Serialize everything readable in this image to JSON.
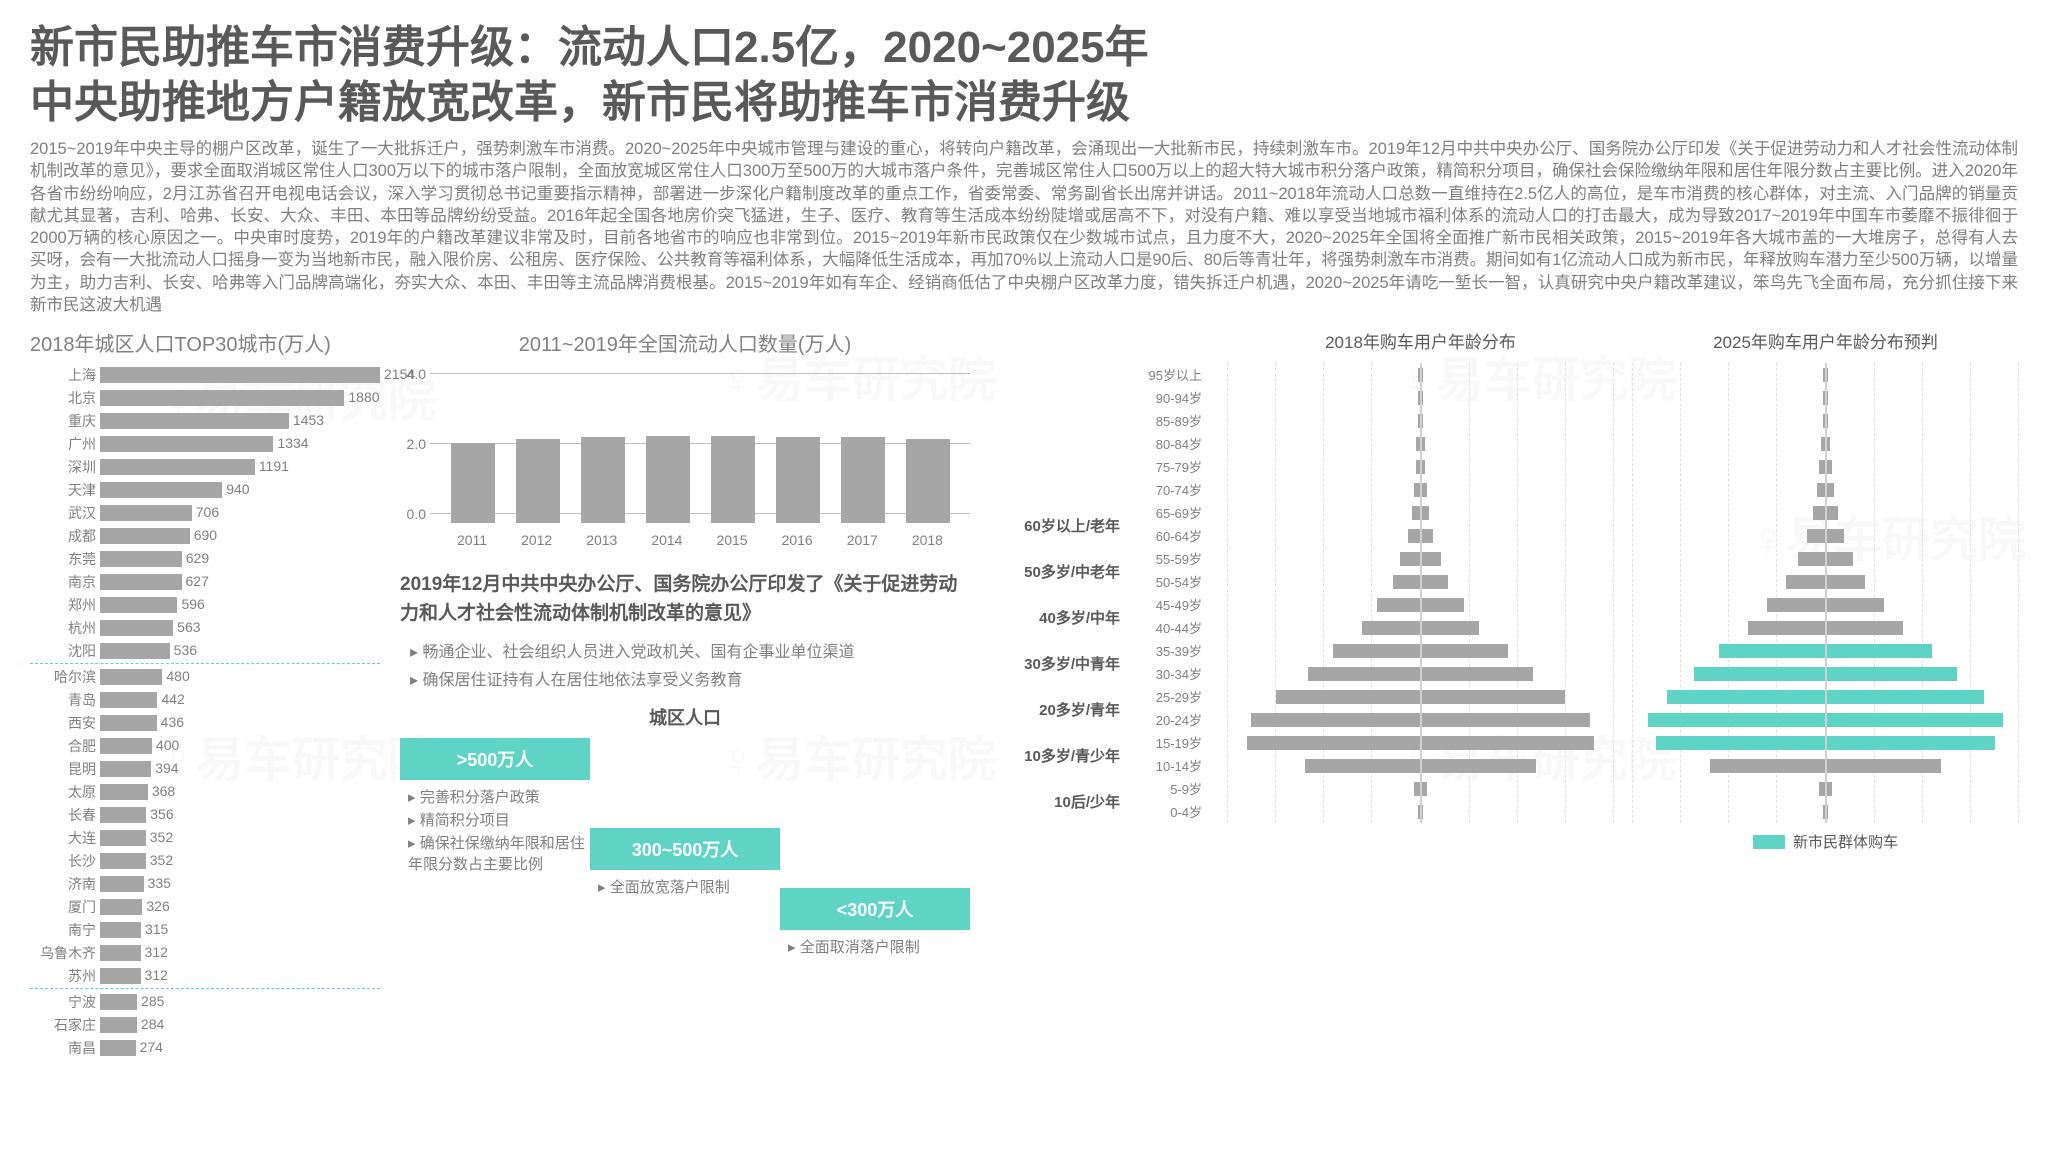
{
  "title_line1": "新市民助推车市消费升级：流动人口2.5亿，2020~2025年",
  "title_line2": "中央助推地方户籍放宽改革，新市民将助推车市消费升级",
  "body": "2015~2019年中央主导的棚户区改革，诞生了一大批拆迁户，强势刺激车市消费。2020~2025年中央城市管理与建设的重心，将转向户籍改革，会涌现出一大批新市民，持续刺激车市。2019年12月中共中央办公厅、国务院办公厅印发《关于促进劳动力和人才社会性流动体制机制改革的意见》，要求全面取消城区常住人口300万以下的城市落户限制，全面放宽城区常住人口300万至500万的大城市落户条件，完善城区常住人口500万以上的超大特大城市积分落户政策，精简积分项目，确保社会保险缴纳年限和居住年限分数占主要比例。进入2020年各省市纷纷响应，2月江苏省召开电视电话会议，深入学习贯彻总书记重要指示精神，部署进一步深化户籍制度改革的重点工作，省委常委、常务副省长出席并讲话。2011~2018年流动人口总数一直维持在2.5亿人的高位，是车市消费的核心群体，对主流、入门品牌的销量贡献尤其显著，吉利、哈弗、长安、大众、丰田、本田等品牌纷纷受益。2016年起全国各地房价突飞猛进，生子、医疗、教育等生活成本纷纷陡增或居高不下，对没有户籍、难以享受当地城市福利体系的流动人口的打击最大，成为导致2017~2019年中国车市萎靡不振徘徊于2000万辆的核心原因之一。中央审时度势，2019年的户籍改革建议非常及时，目前各地省市的响应也非常到位。2015~2019年新市民政策仅在少数城市试点，且力度不大，2020~2025年全国将全面推广新市民相关政策，2015~2019年各大城市盖的一大堆房子，总得有人去买呀，会有一大批流动人口摇身一变为当地新市民，融入限价房、公租房、医疗保险、公共教育等福利体系，大幅降低生活成本，再加70%以上流动人口是90后、80后等青壮年，将强势刺激车市消费。期间如有1亿流动人口成为新市民，年释放购车潜力至少500万辆，以增量为主，助力吉利、长安、哈弗等入门品牌高端化，夯实大众、本田、丰田等主流品牌消费根基。2015~2019年如有车企、经销商低估了中央棚户区改革力度，错失拆迁户机遇，2020~2025年请吃一堑长一智，认真研究中央户籍改革建议，笨鸟先飞全面布局，充分抓住接下来新市民这波大机遇",
  "hbar": {
    "title": "2018年城区人口TOP30城市(万人)",
    "max": 2154,
    "color": "#a6a6a6",
    "text_color": "#808080",
    "dividers_after": [
      12,
      26
    ],
    "items": [
      {
        "label": "上海",
        "value": 2154
      },
      {
        "label": "北京",
        "value": 1880
      },
      {
        "label": "重庆",
        "value": 1453
      },
      {
        "label": "广州",
        "value": 1334
      },
      {
        "label": "深圳",
        "value": 1191
      },
      {
        "label": "天津",
        "value": 940
      },
      {
        "label": "武汉",
        "value": 706
      },
      {
        "label": "成都",
        "value": 690
      },
      {
        "label": "东莞",
        "value": 629
      },
      {
        "label": "南京",
        "value": 627
      },
      {
        "label": "郑州",
        "value": 596
      },
      {
        "label": "杭州",
        "value": 563
      },
      {
        "label": "沈阳",
        "value": 536
      },
      {
        "label": "哈尔滨",
        "value": 480
      },
      {
        "label": "青岛",
        "value": 442
      },
      {
        "label": "西安",
        "value": 436
      },
      {
        "label": "合肥",
        "value": 400
      },
      {
        "label": "昆明",
        "value": 394
      },
      {
        "label": "太原",
        "value": 368
      },
      {
        "label": "长春",
        "value": 356
      },
      {
        "label": "大连",
        "value": 352
      },
      {
        "label": "长沙",
        "value": 352
      },
      {
        "label": "济南",
        "value": 335
      },
      {
        "label": "厦门",
        "value": 326
      },
      {
        "label": "南宁",
        "value": 315
      },
      {
        "label": "乌鲁木齐",
        "value": 312
      },
      {
        "label": "苏州",
        "value": 312
      },
      {
        "label": "宁波",
        "value": 285
      },
      {
        "label": "石家庄",
        "value": 284
      },
      {
        "label": "南昌",
        "value": 274
      }
    ]
  },
  "vbar": {
    "title": "2011~2019年全国流动人口数量(万人)",
    "yticks": [
      "0.0",
      "2.0",
      "4.0"
    ],
    "ymax": 4.0,
    "color": "#a6a6a6",
    "items": [
      {
        "year": "2011",
        "value": 2.3
      },
      {
        "year": "2012",
        "value": 2.4
      },
      {
        "year": "2013",
        "value": 2.45
      },
      {
        "year": "2014",
        "value": 2.5
      },
      {
        "year": "2015",
        "value": 2.5
      },
      {
        "year": "2016",
        "value": 2.45
      },
      {
        "year": "2017",
        "value": 2.45
      },
      {
        "year": "2018",
        "value": 2.4
      }
    ]
  },
  "policy": {
    "heading": "2019年12月中共中央办公厅、国务院办公厅印发了《关于促进劳动力和人才社会性流动体制机制改革的意见》",
    "bullets": [
      "畅通企业、社会组织人员进入党政机关、国有企事业单位渠道",
      "确保居住证持有人在居住地依法享受义务教育"
    ],
    "pop_title": "城区人口",
    "tiers": [
      {
        "box": ">500万人",
        "desc": [
          "完善积分落户政策",
          "精简积分项目",
          "确保社保缴纳年限和居住年限分数占主要比例"
        ]
      },
      {
        "box": "300~500万人",
        "desc": [
          "全面放宽落户限制"
        ]
      },
      {
        "box": "<300万人",
        "desc": [
          "全面取消落户限制"
        ]
      }
    ],
    "accent": "#5fd4c4"
  },
  "pyramid": {
    "title_left": "2018年购车用户年龄分布",
    "title_right": "2025年购车用户年龄分布预判",
    "legend": "新市民群体购车",
    "accent": "#5fd4c4",
    "bar_color": "#a6a6a6",
    "age_groups": [
      {
        "group": "",
        "rows": [
          {
            "age": "95岁以上"
          },
          {
            "age": "90-94岁"
          }
        ]
      },
      {
        "group": "",
        "rows": [
          {
            "age": "85-89岁"
          },
          {
            "age": "80-84岁"
          }
        ]
      },
      {
        "group": "",
        "rows": [
          {
            "age": "75-79岁"
          },
          {
            "age": "70-74岁"
          }
        ]
      },
      {
        "group": "60岁以上/老年",
        "rows": [
          {
            "age": "65-69岁"
          },
          {
            "age": "60-64岁"
          }
        ]
      },
      {
        "group": "50多岁/中老年",
        "rows": [
          {
            "age": "55-59岁"
          },
          {
            "age": "50-54岁"
          }
        ]
      },
      {
        "group": "40多岁/中年",
        "rows": [
          {
            "age": "45-49岁"
          },
          {
            "age": "40-44岁"
          }
        ]
      },
      {
        "group": "30多岁/中青年",
        "rows": [
          {
            "age": "35-39岁"
          },
          {
            "age": "30-34岁"
          }
        ]
      },
      {
        "group": "20多岁/青年",
        "rows": [
          {
            "age": "25-29岁"
          },
          {
            "age": "20-24岁"
          }
        ]
      },
      {
        "group": "10多岁/青少年",
        "rows": [
          {
            "age": "15-19岁"
          },
          {
            "age": "10-14岁"
          }
        ]
      },
      {
        "group": "10后/少年",
        "rows": [
          {
            "age": "5-9岁"
          },
          {
            "age": "0-4岁"
          }
        ]
      }
    ],
    "left_values": [
      1,
      1,
      1,
      2,
      2,
      3,
      4,
      6,
      10,
      14,
      22,
      30,
      45,
      58,
      75,
      88,
      90,
      60,
      3,
      1
    ],
    "left_hl": [
      0,
      0,
      0,
      0,
      0,
      0,
      0,
      0,
      0,
      0,
      0,
      0,
      0,
      0,
      0,
      0,
      0,
      0,
      0,
      0
    ],
    "right_values": [
      1,
      1,
      1,
      2,
      3,
      4,
      6,
      9,
      14,
      20,
      30,
      40,
      55,
      68,
      82,
      92,
      88,
      60,
      3,
      1
    ],
    "right_hl": [
      0,
      0,
      0,
      0,
      0,
      0,
      0,
      0,
      0,
      0,
      0,
      0,
      1,
      1,
      1,
      1,
      1,
      0,
      0,
      0
    ],
    "max": 100
  },
  "watermark_text": "易车研究院"
}
